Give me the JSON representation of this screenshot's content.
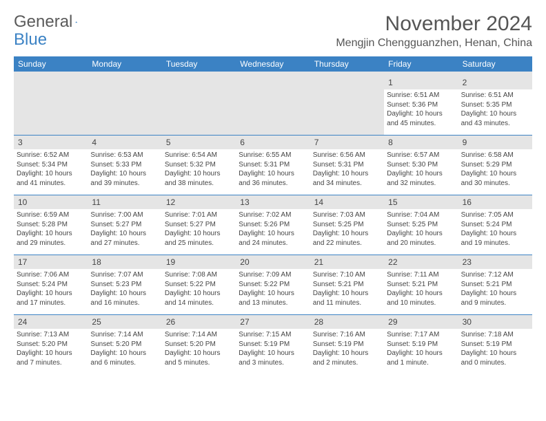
{
  "brand": {
    "word1": "General",
    "word2": "Blue",
    "logo_color": "#3b82c4"
  },
  "title": "November 2024",
  "location": "Mengjin Chengguanzhen, Henan, China",
  "colors": {
    "header_bg": "#3b82c4",
    "header_text": "#ffffff",
    "daynum_bg": "#e5e5e5",
    "text": "#444444",
    "divider": "#3b82c4"
  },
  "day_names": [
    "Sunday",
    "Monday",
    "Tuesday",
    "Wednesday",
    "Thursday",
    "Friday",
    "Saturday"
  ],
  "weeks": [
    [
      null,
      null,
      null,
      null,
      null,
      {
        "n": "1",
        "sr": "Sunrise: 6:51 AM",
        "ss": "Sunset: 5:36 PM",
        "d1": "Daylight: 10 hours",
        "d2": "and 45 minutes."
      },
      {
        "n": "2",
        "sr": "Sunrise: 6:51 AM",
        "ss": "Sunset: 5:35 PM",
        "d1": "Daylight: 10 hours",
        "d2": "and 43 minutes."
      }
    ],
    [
      {
        "n": "3",
        "sr": "Sunrise: 6:52 AM",
        "ss": "Sunset: 5:34 PM",
        "d1": "Daylight: 10 hours",
        "d2": "and 41 minutes."
      },
      {
        "n": "4",
        "sr": "Sunrise: 6:53 AM",
        "ss": "Sunset: 5:33 PM",
        "d1": "Daylight: 10 hours",
        "d2": "and 39 minutes."
      },
      {
        "n": "5",
        "sr": "Sunrise: 6:54 AM",
        "ss": "Sunset: 5:32 PM",
        "d1": "Daylight: 10 hours",
        "d2": "and 38 minutes."
      },
      {
        "n": "6",
        "sr": "Sunrise: 6:55 AM",
        "ss": "Sunset: 5:31 PM",
        "d1": "Daylight: 10 hours",
        "d2": "and 36 minutes."
      },
      {
        "n": "7",
        "sr": "Sunrise: 6:56 AM",
        "ss": "Sunset: 5:31 PM",
        "d1": "Daylight: 10 hours",
        "d2": "and 34 minutes."
      },
      {
        "n": "8",
        "sr": "Sunrise: 6:57 AM",
        "ss": "Sunset: 5:30 PM",
        "d1": "Daylight: 10 hours",
        "d2": "and 32 minutes."
      },
      {
        "n": "9",
        "sr": "Sunrise: 6:58 AM",
        "ss": "Sunset: 5:29 PM",
        "d1": "Daylight: 10 hours",
        "d2": "and 30 minutes."
      }
    ],
    [
      {
        "n": "10",
        "sr": "Sunrise: 6:59 AM",
        "ss": "Sunset: 5:28 PM",
        "d1": "Daylight: 10 hours",
        "d2": "and 29 minutes."
      },
      {
        "n": "11",
        "sr": "Sunrise: 7:00 AM",
        "ss": "Sunset: 5:27 PM",
        "d1": "Daylight: 10 hours",
        "d2": "and 27 minutes."
      },
      {
        "n": "12",
        "sr": "Sunrise: 7:01 AM",
        "ss": "Sunset: 5:27 PM",
        "d1": "Daylight: 10 hours",
        "d2": "and 25 minutes."
      },
      {
        "n": "13",
        "sr": "Sunrise: 7:02 AM",
        "ss": "Sunset: 5:26 PM",
        "d1": "Daylight: 10 hours",
        "d2": "and 24 minutes."
      },
      {
        "n": "14",
        "sr": "Sunrise: 7:03 AM",
        "ss": "Sunset: 5:25 PM",
        "d1": "Daylight: 10 hours",
        "d2": "and 22 minutes."
      },
      {
        "n": "15",
        "sr": "Sunrise: 7:04 AM",
        "ss": "Sunset: 5:25 PM",
        "d1": "Daylight: 10 hours",
        "d2": "and 20 minutes."
      },
      {
        "n": "16",
        "sr": "Sunrise: 7:05 AM",
        "ss": "Sunset: 5:24 PM",
        "d1": "Daylight: 10 hours",
        "d2": "and 19 minutes."
      }
    ],
    [
      {
        "n": "17",
        "sr": "Sunrise: 7:06 AM",
        "ss": "Sunset: 5:24 PM",
        "d1": "Daylight: 10 hours",
        "d2": "and 17 minutes."
      },
      {
        "n": "18",
        "sr": "Sunrise: 7:07 AM",
        "ss": "Sunset: 5:23 PM",
        "d1": "Daylight: 10 hours",
        "d2": "and 16 minutes."
      },
      {
        "n": "19",
        "sr": "Sunrise: 7:08 AM",
        "ss": "Sunset: 5:22 PM",
        "d1": "Daylight: 10 hours",
        "d2": "and 14 minutes."
      },
      {
        "n": "20",
        "sr": "Sunrise: 7:09 AM",
        "ss": "Sunset: 5:22 PM",
        "d1": "Daylight: 10 hours",
        "d2": "and 13 minutes."
      },
      {
        "n": "21",
        "sr": "Sunrise: 7:10 AM",
        "ss": "Sunset: 5:21 PM",
        "d1": "Daylight: 10 hours",
        "d2": "and 11 minutes."
      },
      {
        "n": "22",
        "sr": "Sunrise: 7:11 AM",
        "ss": "Sunset: 5:21 PM",
        "d1": "Daylight: 10 hours",
        "d2": "and 10 minutes."
      },
      {
        "n": "23",
        "sr": "Sunrise: 7:12 AM",
        "ss": "Sunset: 5:21 PM",
        "d1": "Daylight: 10 hours",
        "d2": "and 9 minutes."
      }
    ],
    [
      {
        "n": "24",
        "sr": "Sunrise: 7:13 AM",
        "ss": "Sunset: 5:20 PM",
        "d1": "Daylight: 10 hours",
        "d2": "and 7 minutes."
      },
      {
        "n": "25",
        "sr": "Sunrise: 7:14 AM",
        "ss": "Sunset: 5:20 PM",
        "d1": "Daylight: 10 hours",
        "d2": "and 6 minutes."
      },
      {
        "n": "26",
        "sr": "Sunrise: 7:14 AM",
        "ss": "Sunset: 5:20 PM",
        "d1": "Daylight: 10 hours",
        "d2": "and 5 minutes."
      },
      {
        "n": "27",
        "sr": "Sunrise: 7:15 AM",
        "ss": "Sunset: 5:19 PM",
        "d1": "Daylight: 10 hours",
        "d2": "and 3 minutes."
      },
      {
        "n": "28",
        "sr": "Sunrise: 7:16 AM",
        "ss": "Sunset: 5:19 PM",
        "d1": "Daylight: 10 hours",
        "d2": "and 2 minutes."
      },
      {
        "n": "29",
        "sr": "Sunrise: 7:17 AM",
        "ss": "Sunset: 5:19 PM",
        "d1": "Daylight: 10 hours",
        "d2": "and 1 minute."
      },
      {
        "n": "30",
        "sr": "Sunrise: 7:18 AM",
        "ss": "Sunset: 5:19 PM",
        "d1": "Daylight: 10 hours",
        "d2": "and 0 minutes."
      }
    ]
  ]
}
